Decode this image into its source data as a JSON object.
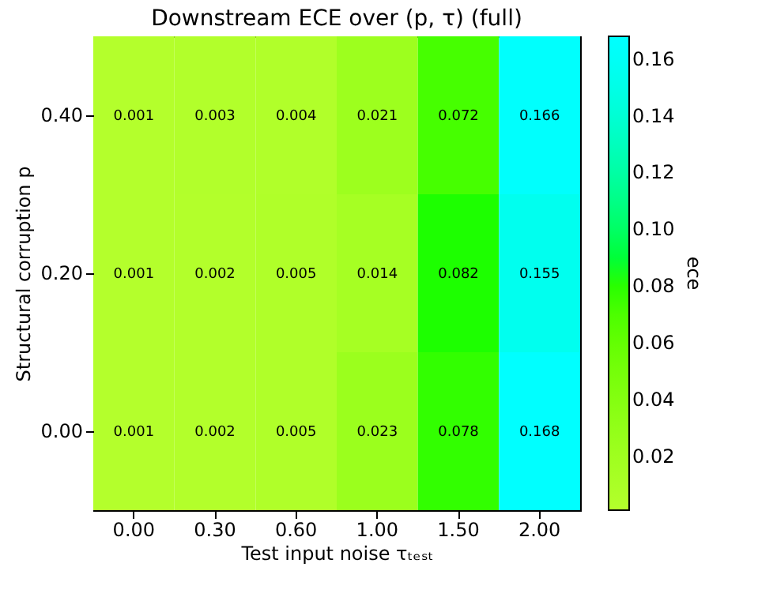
{
  "chart_data": {
    "type": "heatmap",
    "title": "Downstream ECE over (p, τ) (full)",
    "xlabel": "Test input noise τₜₑₛₜ",
    "ylabel": "Structural corruption p",
    "clabel": "ece",
    "categories": [
      "0.00",
      "0.30",
      "0.60",
      "1.00",
      "1.50",
      "2.00"
    ],
    "y_categories": [
      "0.40",
      "0.20",
      "0.00"
    ],
    "cells": [
      [
        0.001,
        0.003,
        0.004,
        0.021,
        0.072,
        0.166
      ],
      [
        0.001,
        0.002,
        0.005,
        0.014,
        0.082,
        0.155
      ],
      [
        0.001,
        0.002,
        0.005,
        0.023,
        0.078,
        0.168
      ]
    ],
    "data_labels": true,
    "clim": [
      0.001,
      0.168
    ],
    "cticks": [
      0.02,
      0.04,
      0.06,
      0.08,
      {
        "value": 0.1,
        "label": "0.10"
      },
      0.12,
      0.14,
      0.16
    ]
  }
}
